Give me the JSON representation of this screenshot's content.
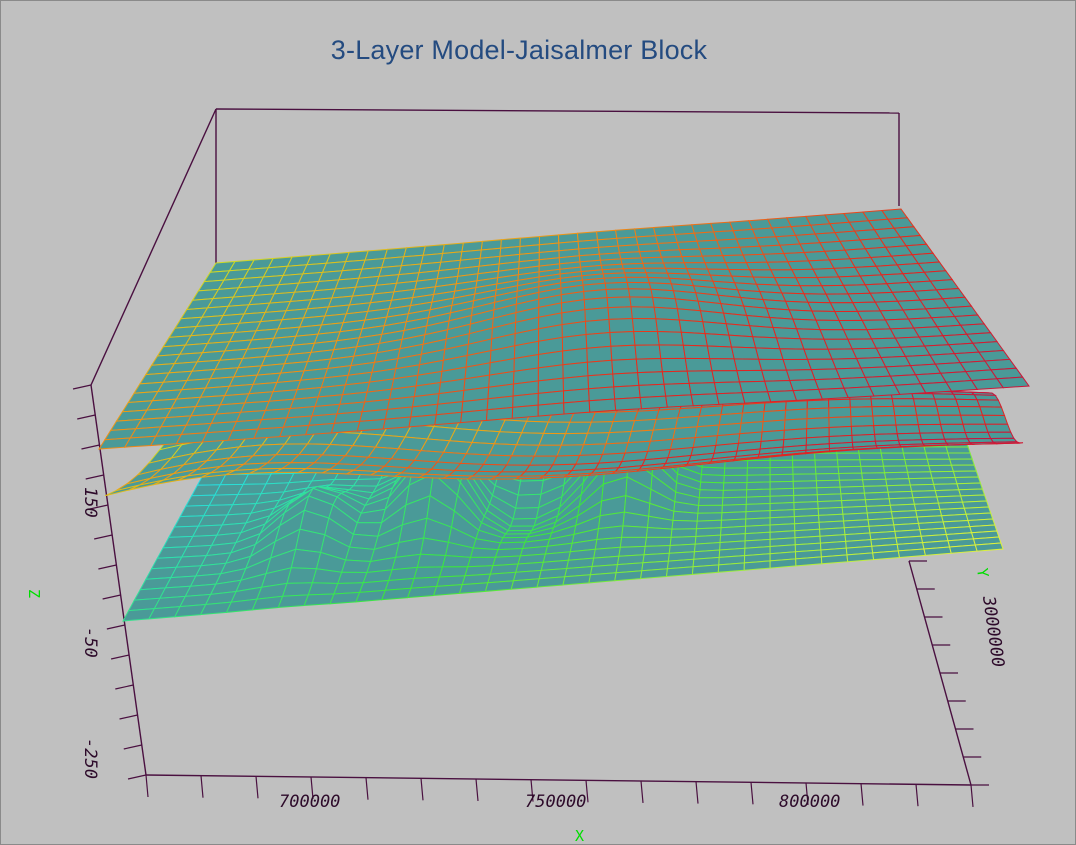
{
  "chart_data": {
    "type": "surface",
    "title": "3-Layer Model-Jaisalmer Block",
    "xlabel": "X",
    "ylabel": "Y",
    "zlabel": "Z",
    "x_ticks": [
      "700000",
      "750000",
      "800000"
    ],
    "y_ticks": [
      "3000000"
    ],
    "z_ticks": [
      "150",
      "-50",
      "-250"
    ],
    "grid": false,
    "series": [
      {
        "colormap": "yellow-orange-red"
      },
      {
        "colormap": "yellow-orange-red"
      },
      {
        "colormap": "blue-cyan-green-yellow"
      }
    ]
  },
  "colors": {
    "background": "#c0c0c0",
    "title": "#244b80",
    "axis_lines": "#4a1040",
    "axis_name": "#00dd00",
    "surface_fill": "#4a9a98"
  }
}
